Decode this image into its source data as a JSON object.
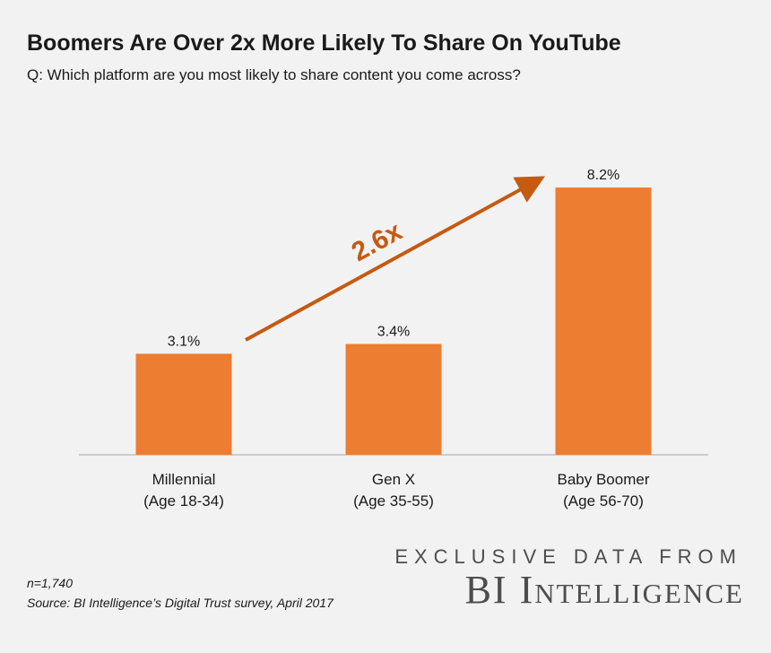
{
  "title": "Boomers Are Over 2x More Likely To Share On YouTube",
  "subtitle": "Q: Which platform are you most likely to share content you come across?",
  "chart_data": {
    "type": "bar",
    "categories": [
      [
        "Millennial",
        "(Age 18-34)"
      ],
      [
        "Gen X",
        "(Age 35-55)"
      ],
      [
        "Baby Boomer",
        "(Age 56-70)"
      ]
    ],
    "values": [
      3.1,
      3.4,
      8.2
    ],
    "data_labels": [
      "3.1%",
      "3.4%",
      "8.2%"
    ],
    "unit": "%",
    "ylim": [
      0,
      9
    ],
    "grid": false,
    "bar_color": "#ed7d31",
    "annotation": {
      "text": "2.6x",
      "color": "#c55a11",
      "from_category": 0,
      "to_category": 2
    }
  },
  "footnotes": {
    "n": "n=1,740",
    "source": "Source: BI Intelligence’s Digital Trust survey, April 2017"
  },
  "brand": {
    "tagline": "EXCLUSIVE DATA FROM",
    "name": "BI Intelligence"
  }
}
